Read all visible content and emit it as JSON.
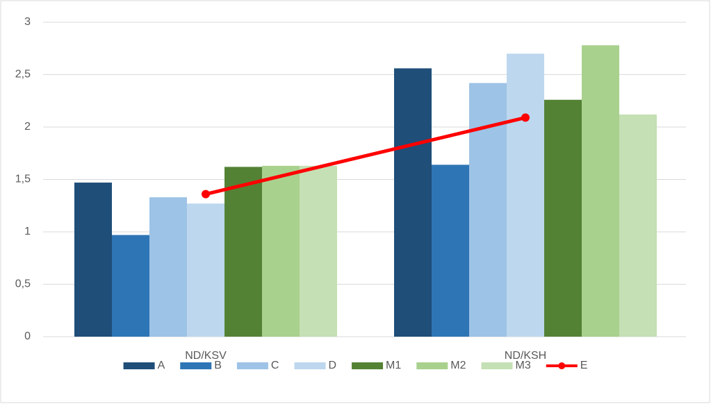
{
  "chart_data": {
    "type": "bar",
    "categories": [
      "ND/KSV",
      "ND/KSH"
    ],
    "series": [
      {
        "name": "A",
        "color": "#1f4e79",
        "values": [
          1.47,
          2.56
        ]
      },
      {
        "name": "B",
        "color": "#2e75b6",
        "values": [
          0.97,
          1.64
        ]
      },
      {
        "name": "C",
        "color": "#9dc3e6",
        "values": [
          1.33,
          2.42
        ]
      },
      {
        "name": "D",
        "color": "#bdd7ee",
        "values": [
          1.27,
          2.7
        ]
      },
      {
        "name": "M1",
        "color": "#548235",
        "values": [
          1.62,
          2.26
        ]
      },
      {
        "name": "M2",
        "color": "#a9d18e",
        "values": [
          1.63,
          2.78
        ]
      },
      {
        "name": "M3",
        "color": "#c5e0b4",
        "values": [
          1.63,
          2.12
        ]
      },
      {
        "name": "E",
        "color": "#ff0000",
        "type": "line",
        "values": [
          1.36,
          2.09
        ]
      }
    ],
    "ylim": [
      0,
      3
    ],
    "yticks": [
      0,
      {
        "value": 0.5,
        "label": "0,5"
      },
      1,
      {
        "value": 1.5,
        "label": "1,5"
      },
      2,
      {
        "value": 2.5,
        "label": "2,5"
      },
      3
    ],
    "grid": true,
    "legend": "bottom"
  }
}
